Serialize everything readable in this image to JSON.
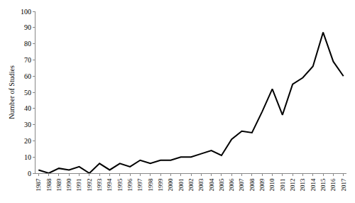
{
  "chart_data": {
    "type": "line",
    "y_label": "Number of Studies",
    "categories": [
      "1987",
      "1988",
      "1989",
      "1990",
      "1991",
      "1992",
      "1993",
      "1994",
      "1995",
      "1996",
      "1997",
      "1998",
      "1999",
      "2000",
      "2001",
      "2002",
      "2003",
      "2004",
      "2005",
      "2006",
      "2007",
      "2008",
      "2009",
      "2010",
      "2011",
      "2012",
      "2013",
      "2014",
      "2015",
      "2016",
      "2017"
    ],
    "values": [
      2,
      0,
      3,
      2,
      4,
      0,
      6,
      2,
      6,
      4,
      8,
      6,
      8,
      8,
      10,
      10,
      12,
      14,
      11,
      21,
      26,
      25,
      38,
      52,
      36,
      55,
      59,
      66,
      87,
      69,
      60
    ],
    "color": "#000000",
    "ylim": [
      0,
      100
    ],
    "yticks": [
      0,
      10,
      20,
      30,
      40,
      50,
      60,
      70,
      80,
      90,
      100
    ],
    "grid": false
  }
}
